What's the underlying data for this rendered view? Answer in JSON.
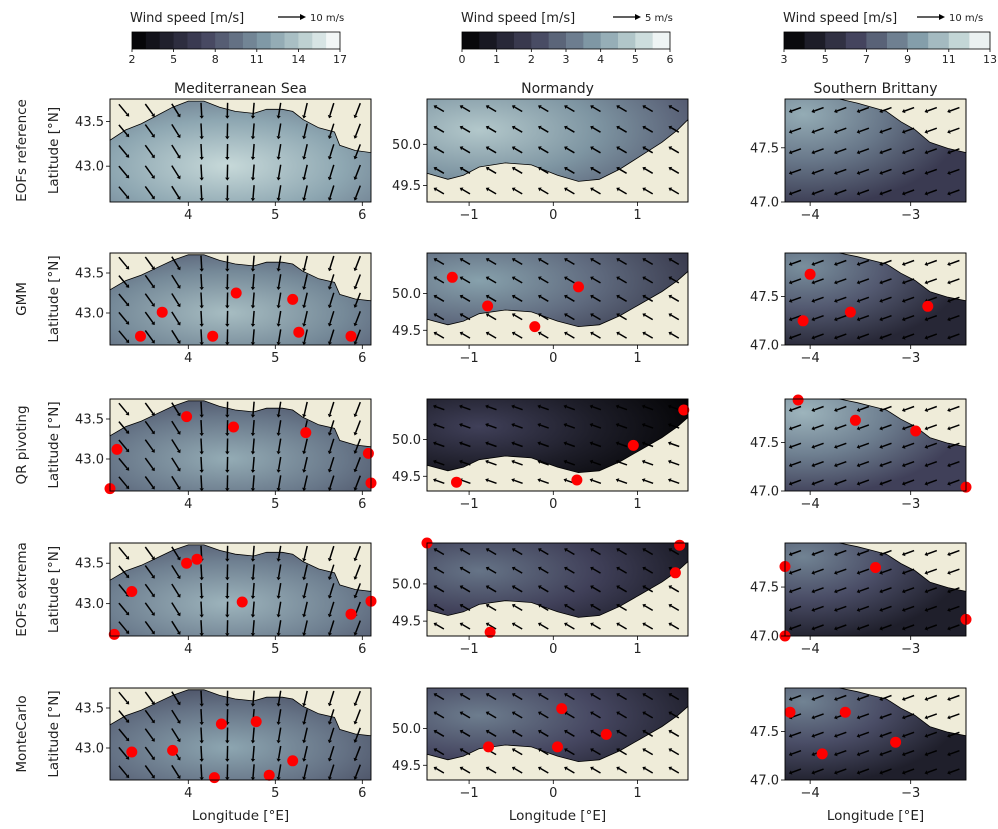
{
  "colorbars": [
    {
      "title": "Wind speed [m/s]",
      "arrow_ref": "10 m/s",
      "ticks": [
        "2",
        "5",
        "8",
        "11",
        "14",
        "17"
      ],
      "vmin": 2,
      "vmax": 17,
      "levels": 15
    },
    {
      "title": "Wind speed [m/s]",
      "arrow_ref": "5 m/s",
      "ticks": [
        "0",
        "1",
        "2",
        "3",
        "4",
        "5",
        "6"
      ],
      "vmin": 0,
      "vmax": 6,
      "levels": 12
    },
    {
      "title": "Wind speed [m/s]",
      "arrow_ref": "10 m/s",
      "ticks": [
        "3",
        "5",
        "7",
        "9",
        "11",
        "13"
      ],
      "vmin": 3,
      "vmax": 13,
      "levels": 10
    }
  ],
  "columns": [
    {
      "title": "Mediterranean Sea",
      "xlabel": "Longitude [°E]",
      "ylabel": "Latitude [°N]",
      "xlim": [
        3.1,
        6.1
      ],
      "ylim": [
        42.6,
        43.75
      ],
      "xticks": [
        {
          "v": 4,
          "label": "4"
        },
        {
          "v": 5,
          "label": "5"
        },
        {
          "v": 6,
          "label": "6"
        }
      ],
      "yticks": [
        {
          "v": 43.5,
          "label": "43.5"
        },
        {
          "v": 43.0,
          "label": "43.0"
        }
      ]
    },
    {
      "title": "Normandy",
      "xlabel": "Longitude [°E]",
      "ylabel": "",
      "xlim": [
        -1.5,
        1.6
      ],
      "ylim": [
        49.3,
        50.55
      ],
      "xticks": [
        {
          "v": -1,
          "label": "−1"
        },
        {
          "v": 0,
          "label": "0"
        },
        {
          "v": 1,
          "label": "1"
        }
      ],
      "yticks": [
        {
          "v": 50.0,
          "label": "50.0"
        },
        {
          "v": 49.5,
          "label": "49.5"
        }
      ]
    },
    {
      "title": "Southern Brittany",
      "xlabel": "Longitude [°E]",
      "ylabel": "",
      "xlim": [
        -4.25,
        -2.45
      ],
      "ylim": [
        47.0,
        47.95
      ],
      "xticks": [
        {
          "v": -4,
          "label": "−4"
        },
        {
          "v": -3,
          "label": "−3"
        }
      ],
      "yticks": [
        {
          "v": 47.5,
          "label": "47.5"
        },
        {
          "v": 47.0,
          "label": "47.0"
        }
      ]
    }
  ],
  "rows": [
    {
      "label": "EOFs reference"
    },
    {
      "label": "GMM"
    },
    {
      "label": "QR pivoting"
    },
    {
      "label": "EOFs extrema"
    },
    {
      "label": "MonteCarlo"
    }
  ],
  "chart_data": {
    "type": "scatter",
    "title": "",
    "description_type": "grid of wind-speed maps with sensor placements",
    "sensor_color": "#ff0000",
    "land_color": "#efecd9",
    "sensors": {
      "Mediterranean Sea": {
        "EOFs reference": [],
        "GMM": [
          [
            3.45,
            42.71
          ],
          [
            3.7,
            43.01
          ],
          [
            4.28,
            42.71
          ],
          [
            4.55,
            43.25
          ],
          [
            5.2,
            43.17
          ],
          [
            5.27,
            42.76
          ],
          [
            5.87,
            42.71
          ]
        ],
        "QR pivoting": [
          [
            3.18,
            43.12
          ],
          [
            3.98,
            43.53
          ],
          [
            4.52,
            43.4
          ],
          [
            5.35,
            43.33
          ],
          [
            6.07,
            43.07
          ],
          [
            3.1,
            42.63
          ],
          [
            6.1,
            42.7
          ]
        ],
        "EOFs extrema": [
          [
            3.35,
            43.15
          ],
          [
            3.98,
            43.5
          ],
          [
            4.1,
            43.55
          ],
          [
            4.62,
            43.02
          ],
          [
            5.87,
            42.87
          ],
          [
            6.1,
            43.03
          ],
          [
            3.15,
            42.62
          ]
        ],
        "MonteCarlo": [
          [
            3.35,
            42.95
          ],
          [
            3.82,
            42.97
          ],
          [
            4.3,
            42.63
          ],
          [
            4.38,
            43.3
          ],
          [
            4.78,
            43.33
          ],
          [
            4.93,
            42.66
          ],
          [
            5.2,
            42.84
          ]
        ]
      },
      "Normandy": {
        "EOFs reference": [],
        "GMM": [
          [
            -1.2,
            50.22
          ],
          [
            -0.78,
            49.83
          ],
          [
            -0.22,
            49.55
          ],
          [
            0.3,
            50.09
          ]
        ],
        "QR pivoting": [
          [
            -1.15,
            49.42
          ],
          [
            0.28,
            49.45
          ],
          [
            0.95,
            49.92
          ],
          [
            1.55,
            50.4
          ]
        ],
        "EOFs extrema": [
          [
            -1.5,
            50.55
          ],
          [
            -0.75,
            49.35
          ],
          [
            1.45,
            50.15
          ],
          [
            1.5,
            50.52
          ]
        ],
        "MonteCarlo": [
          [
            -0.77,
            49.75
          ],
          [
            0.05,
            49.75
          ],
          [
            0.1,
            50.27
          ],
          [
            0.63,
            49.92
          ]
        ]
      },
      "Southern Brittany": {
        "EOFs reference": [],
        "GMM": [
          [
            -4.0,
            47.73
          ],
          [
            -4.07,
            47.25
          ],
          [
            -3.6,
            47.34
          ],
          [
            -2.83,
            47.4
          ]
        ],
        "QR pivoting": [
          [
            -4.12,
            47.94
          ],
          [
            -3.55,
            47.73
          ],
          [
            -2.95,
            47.62
          ],
          [
            -2.45,
            47.04
          ]
        ],
        "EOFs extrema": [
          [
            -4.25,
            47.71
          ],
          [
            -3.35,
            47.7
          ],
          [
            -4.25,
            47.0
          ],
          [
            -2.45,
            47.17
          ]
        ],
        "MonteCarlo": [
          [
            -4.2,
            47.7
          ],
          [
            -3.65,
            47.7
          ],
          [
            -3.88,
            47.27
          ],
          [
            -3.15,
            47.39
          ]
        ]
      }
    }
  }
}
